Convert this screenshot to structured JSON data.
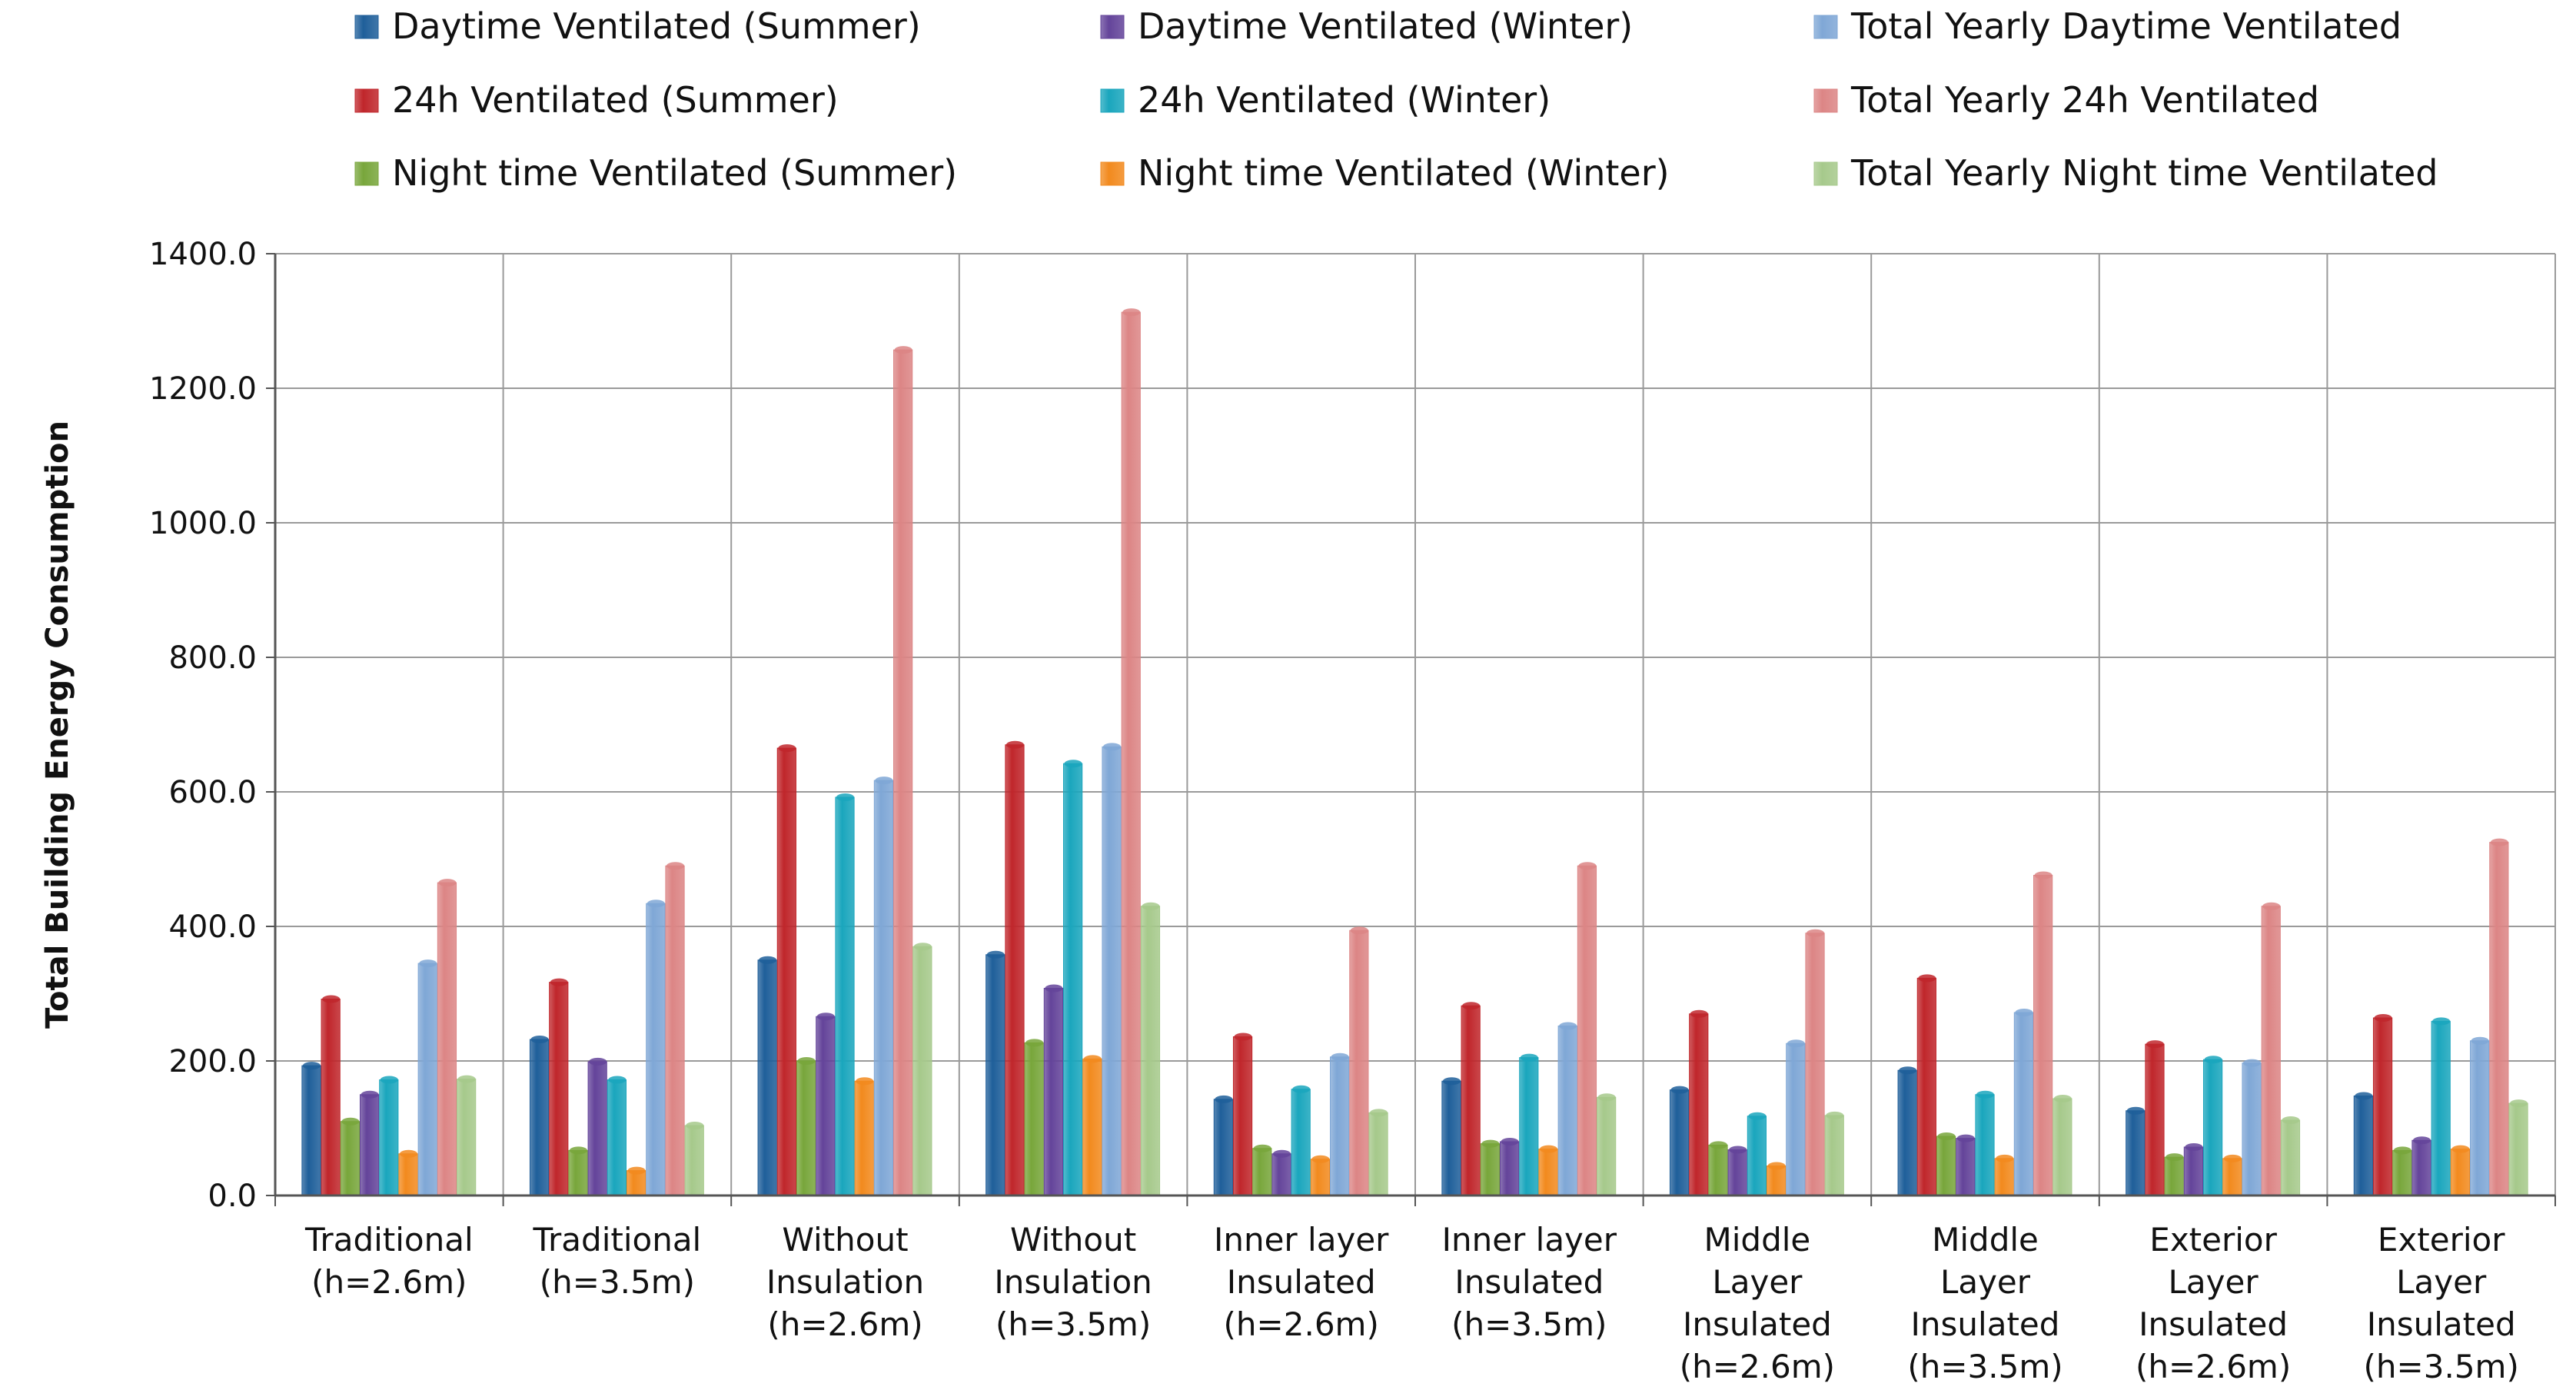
{
  "chart_data": {
    "type": "bar",
    "title": "",
    "xlabel": "",
    "ylabel": "Total Building Energy Consumption",
    "ylim": [
      0,
      1400
    ],
    "yticks": [
      "0.0",
      "200.0",
      "400.0",
      "600.0",
      "800.0",
      "1000.0",
      "1200.0",
      "1400.0"
    ],
    "grid": true,
    "legend_position": "top",
    "categories": [
      [
        "Traditional",
        "(h=2.6m)"
      ],
      [
        "Traditional",
        "(h=3.5m)"
      ],
      [
        "Without",
        "Insulation",
        "(h=2.6m)"
      ],
      [
        "Without",
        "Insulation",
        "(h=3.5m)"
      ],
      [
        "Inner layer",
        "Insulated",
        "(h=2.6m)"
      ],
      [
        "Inner layer",
        "Insulated",
        "(h=3.5m)"
      ],
      [
        "Middle",
        "Layer",
        "Insulated",
        "(h=2.6m)"
      ],
      [
        "Middle",
        "Layer",
        "Insulated",
        "(h=3.5m)"
      ],
      [
        "Exterior",
        "Layer",
        "Insulated",
        "(h=2.6m)"
      ],
      [
        "Exterior",
        "Layer",
        "Insulated",
        "(h=3.5m)"
      ]
    ],
    "series": [
      {
        "name": "Daytime Ventilated (Summer)",
        "color": "#1f5f9a",
        "values": [
          193,
          232,
          350,
          358,
          143,
          170,
          157,
          186,
          126,
          148
        ]
      },
      {
        "name": "24h Ventilated (Summer)",
        "color": "#c0262b",
        "values": [
          292,
          317,
          665,
          670,
          236,
          282,
          270,
          323,
          225,
          264
        ]
      },
      {
        "name": "Night time Ventilated (Summer)",
        "color": "#78a63b",
        "values": [
          110,
          67,
          200,
          227,
          70,
          77,
          75,
          88,
          57,
          67
        ]
      },
      {
        "name": "Daytime Ventilated (Winter)",
        "color": "#64449a",
        "values": [
          150,
          199,
          266,
          308,
          62,
          80,
          68,
          85,
          72,
          82
        ]
      },
      {
        "name": "24h Ventilated (Winter)",
        "color": "#1aa6bd",
        "values": [
          172,
          172,
          592,
          642,
          158,
          205,
          118,
          150,
          202,
          259
        ]
      },
      {
        "name": "Night time Ventilated (Winter)",
        "color": "#f28a1e",
        "values": [
          62,
          37,
          170,
          203,
          54,
          69,
          44,
          55,
          55,
          69
        ]
      },
      {
        "name": "Total Yearly Daytime Ventilated",
        "color": "#7fa7d6",
        "values": [
          345,
          434,
          617,
          667,
          206,
          252,
          226,
          272,
          197,
          230
        ]
      },
      {
        "name": "Total Yearly 24h Ventilated",
        "color": "#dc8585",
        "values": [
          465,
          490,
          1257,
          1313,
          394,
          490,
          390,
          476,
          430,
          525
        ]
      },
      {
        "name": "Total Yearly Night time Ventilated",
        "color": "#a6c98b",
        "values": [
          173,
          104,
          370,
          430,
          123,
          146,
          119,
          144,
          112,
          137
        ]
      }
    ],
    "legend_order": [
      [
        0,
        3,
        6
      ],
      [
        1,
        4,
        7
      ],
      [
        2,
        5,
        8
      ]
    ]
  }
}
